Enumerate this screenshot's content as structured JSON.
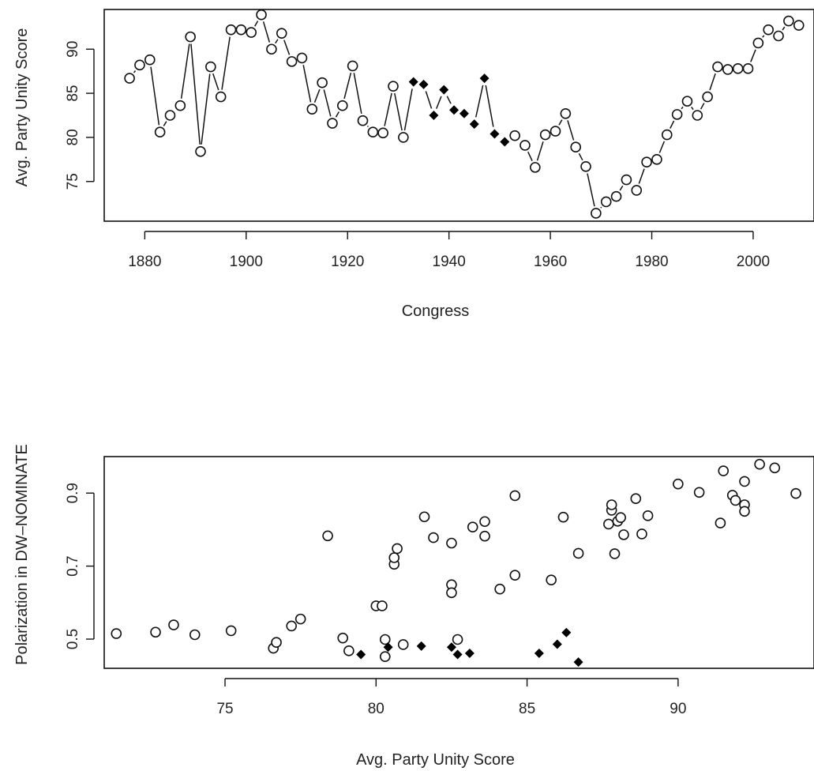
{
  "chart_data": [
    {
      "type": "line",
      "title": "",
      "xlabel": "Congress",
      "ylabel": "Avg. Party Unity Score",
      "xlim": [
        1872,
        2012
      ],
      "ylim": [
        70.5,
        94.5
      ],
      "xticks": [
        1880,
        1900,
        1920,
        1940,
        1960,
        1980,
        2000
      ],
      "yticks": [
        75,
        80,
        85,
        90
      ],
      "grid": false,
      "legend": "none",
      "series": [
        {
          "marker": "open-circle",
          "x": [
            1877,
            1879,
            1881,
            1883,
            1885,
            1887,
            1889,
            1891,
            1893,
            1895,
            1897,
            1899,
            1901,
            1903,
            1905,
            1907,
            1909,
            1911,
            1913,
            1915,
            1917,
            1919,
            1921,
            1923,
            1925,
            1927,
            1929,
            1931
          ],
          "y": [
            86.7,
            88.2,
            88.8,
            80.6,
            82.5,
            83.6,
            91.4,
            78.4,
            88.0,
            84.6,
            92.2,
            92.2,
            91.9,
            93.9,
            90.0,
            91.8,
            88.6,
            89.0,
            83.2,
            86.2,
            81.6,
            83.6,
            88.1,
            81.9,
            80.6,
            80.5,
            85.8,
            80.0
          ]
        },
        {
          "marker": "filled-diamond",
          "x": [
            1933,
            1935,
            1937,
            1939,
            1941,
            1943,
            1945,
            1947,
            1949,
            1951
          ],
          "y": [
            86.3,
            86.0,
            82.5,
            85.4,
            83.1,
            82.7,
            81.5,
            86.7,
            80.4,
            79.5
          ]
        },
        {
          "marker": "open-circle",
          "x": [
            1953,
            1955,
            1957,
            1959,
            1961,
            1963,
            1965,
            1967,
            1969,
            1971,
            1973,
            1975,
            1977,
            1979,
            1981,
            1983,
            1985,
            1987,
            1989,
            1991,
            1993,
            1995,
            1997,
            1999,
            2001,
            2003,
            2005,
            2007,
            2009
          ],
          "y": [
            80.2,
            79.1,
            76.6,
            80.3,
            80.7,
            82.7,
            78.9,
            76.7,
            71.4,
            72.7,
            73.3,
            75.2,
            74.0,
            77.2,
            77.5,
            80.3,
            82.6,
            84.1,
            82.5,
            84.6,
            88.0,
            87.7,
            87.8,
            87.8,
            90.7,
            92.2,
            91.5,
            93.2,
            92.7
          ]
        }
      ]
    },
    {
      "type": "scatter",
      "title": "",
      "xlabel": "Avg. Party Unity Score",
      "ylabel": "Polarization in DW–NOMINATE",
      "xlim": [
        71.0,
        94.5
      ],
      "ylim": [
        0.42,
        1.0
      ],
      "xticks": [
        75,
        80,
        85,
        90
      ],
      "yticks": [
        0.5,
        0.7,
        0.9
      ],
      "grid": false,
      "legend": "none",
      "series": [
        {
          "marker": "open-circle",
          "points": [
            [
              71.4,
              0.515
            ],
            [
              72.7,
              0.519
            ],
            [
              73.3,
              0.539
            ],
            [
              74.0,
              0.512
            ],
            [
              75.2,
              0.523
            ],
            [
              76.6,
              0.475
            ],
            [
              76.7,
              0.491
            ],
            [
              77.2,
              0.536
            ],
            [
              77.5,
              0.555
            ],
            [
              78.4,
              0.783
            ],
            [
              78.9,
              0.503
            ],
            [
              79.1,
              0.468
            ],
            [
              80.0,
              0.591
            ],
            [
              80.2,
              0.591
            ],
            [
              80.3,
              0.452
            ],
            [
              80.3,
              0.499
            ],
            [
              80.6,
              0.705
            ],
            [
              80.6,
              0.723
            ],
            [
              80.7,
              0.748
            ],
            [
              80.9,
              0.485
            ],
            [
              81.6,
              0.835
            ],
            [
              81.9,
              0.778
            ],
            [
              82.5,
              0.763
            ],
            [
              82.5,
              0.649
            ],
            [
              82.5,
              0.627
            ],
            [
              82.7,
              0.499
            ],
            [
              83.2,
              0.807
            ],
            [
              83.6,
              0.822
            ],
            [
              83.6,
              0.782
            ],
            [
              84.1,
              0.637
            ],
            [
              84.6,
              0.893
            ],
            [
              84.6,
              0.675
            ],
            [
              85.8,
              0.662
            ],
            [
              86.2,
              0.834
            ],
            [
              86.7,
              0.735
            ],
            [
              87.7,
              0.815
            ],
            [
              87.8,
              0.853
            ],
            [
              87.8,
              0.868
            ],
            [
              87.9,
              0.734
            ],
            [
              88.0,
              0.823
            ],
            [
              88.1,
              0.833
            ],
            [
              88.2,
              0.786
            ],
            [
              88.6,
              0.885
            ],
            [
              88.8,
              0.788
            ],
            [
              89.0,
              0.838
            ],
            [
              90.0,
              0.925
            ],
            [
              90.7,
              0.902
            ],
            [
              91.4,
              0.818
            ],
            [
              91.5,
              0.961
            ],
            [
              91.8,
              0.894
            ],
            [
              91.9,
              0.88
            ],
            [
              92.2,
              0.932
            ],
            [
              92.2,
              0.868
            ],
            [
              92.2,
              0.85
            ],
            [
              92.7,
              0.979
            ],
            [
              93.2,
              0.969
            ],
            [
              93.9,
              0.899
            ]
          ]
        },
        {
          "marker": "filled-diamond",
          "points": [
            [
              79.5,
              0.458
            ],
            [
              80.4,
              0.478
            ],
            [
              81.5,
              0.481
            ],
            [
              82.5,
              0.478
            ],
            [
              82.7,
              0.458
            ],
            [
              83.1,
              0.461
            ],
            [
              85.4,
              0.461
            ],
            [
              86.0,
              0.486
            ],
            [
              86.3,
              0.518
            ],
            [
              86.7,
              0.437
            ]
          ]
        }
      ]
    }
  ]
}
